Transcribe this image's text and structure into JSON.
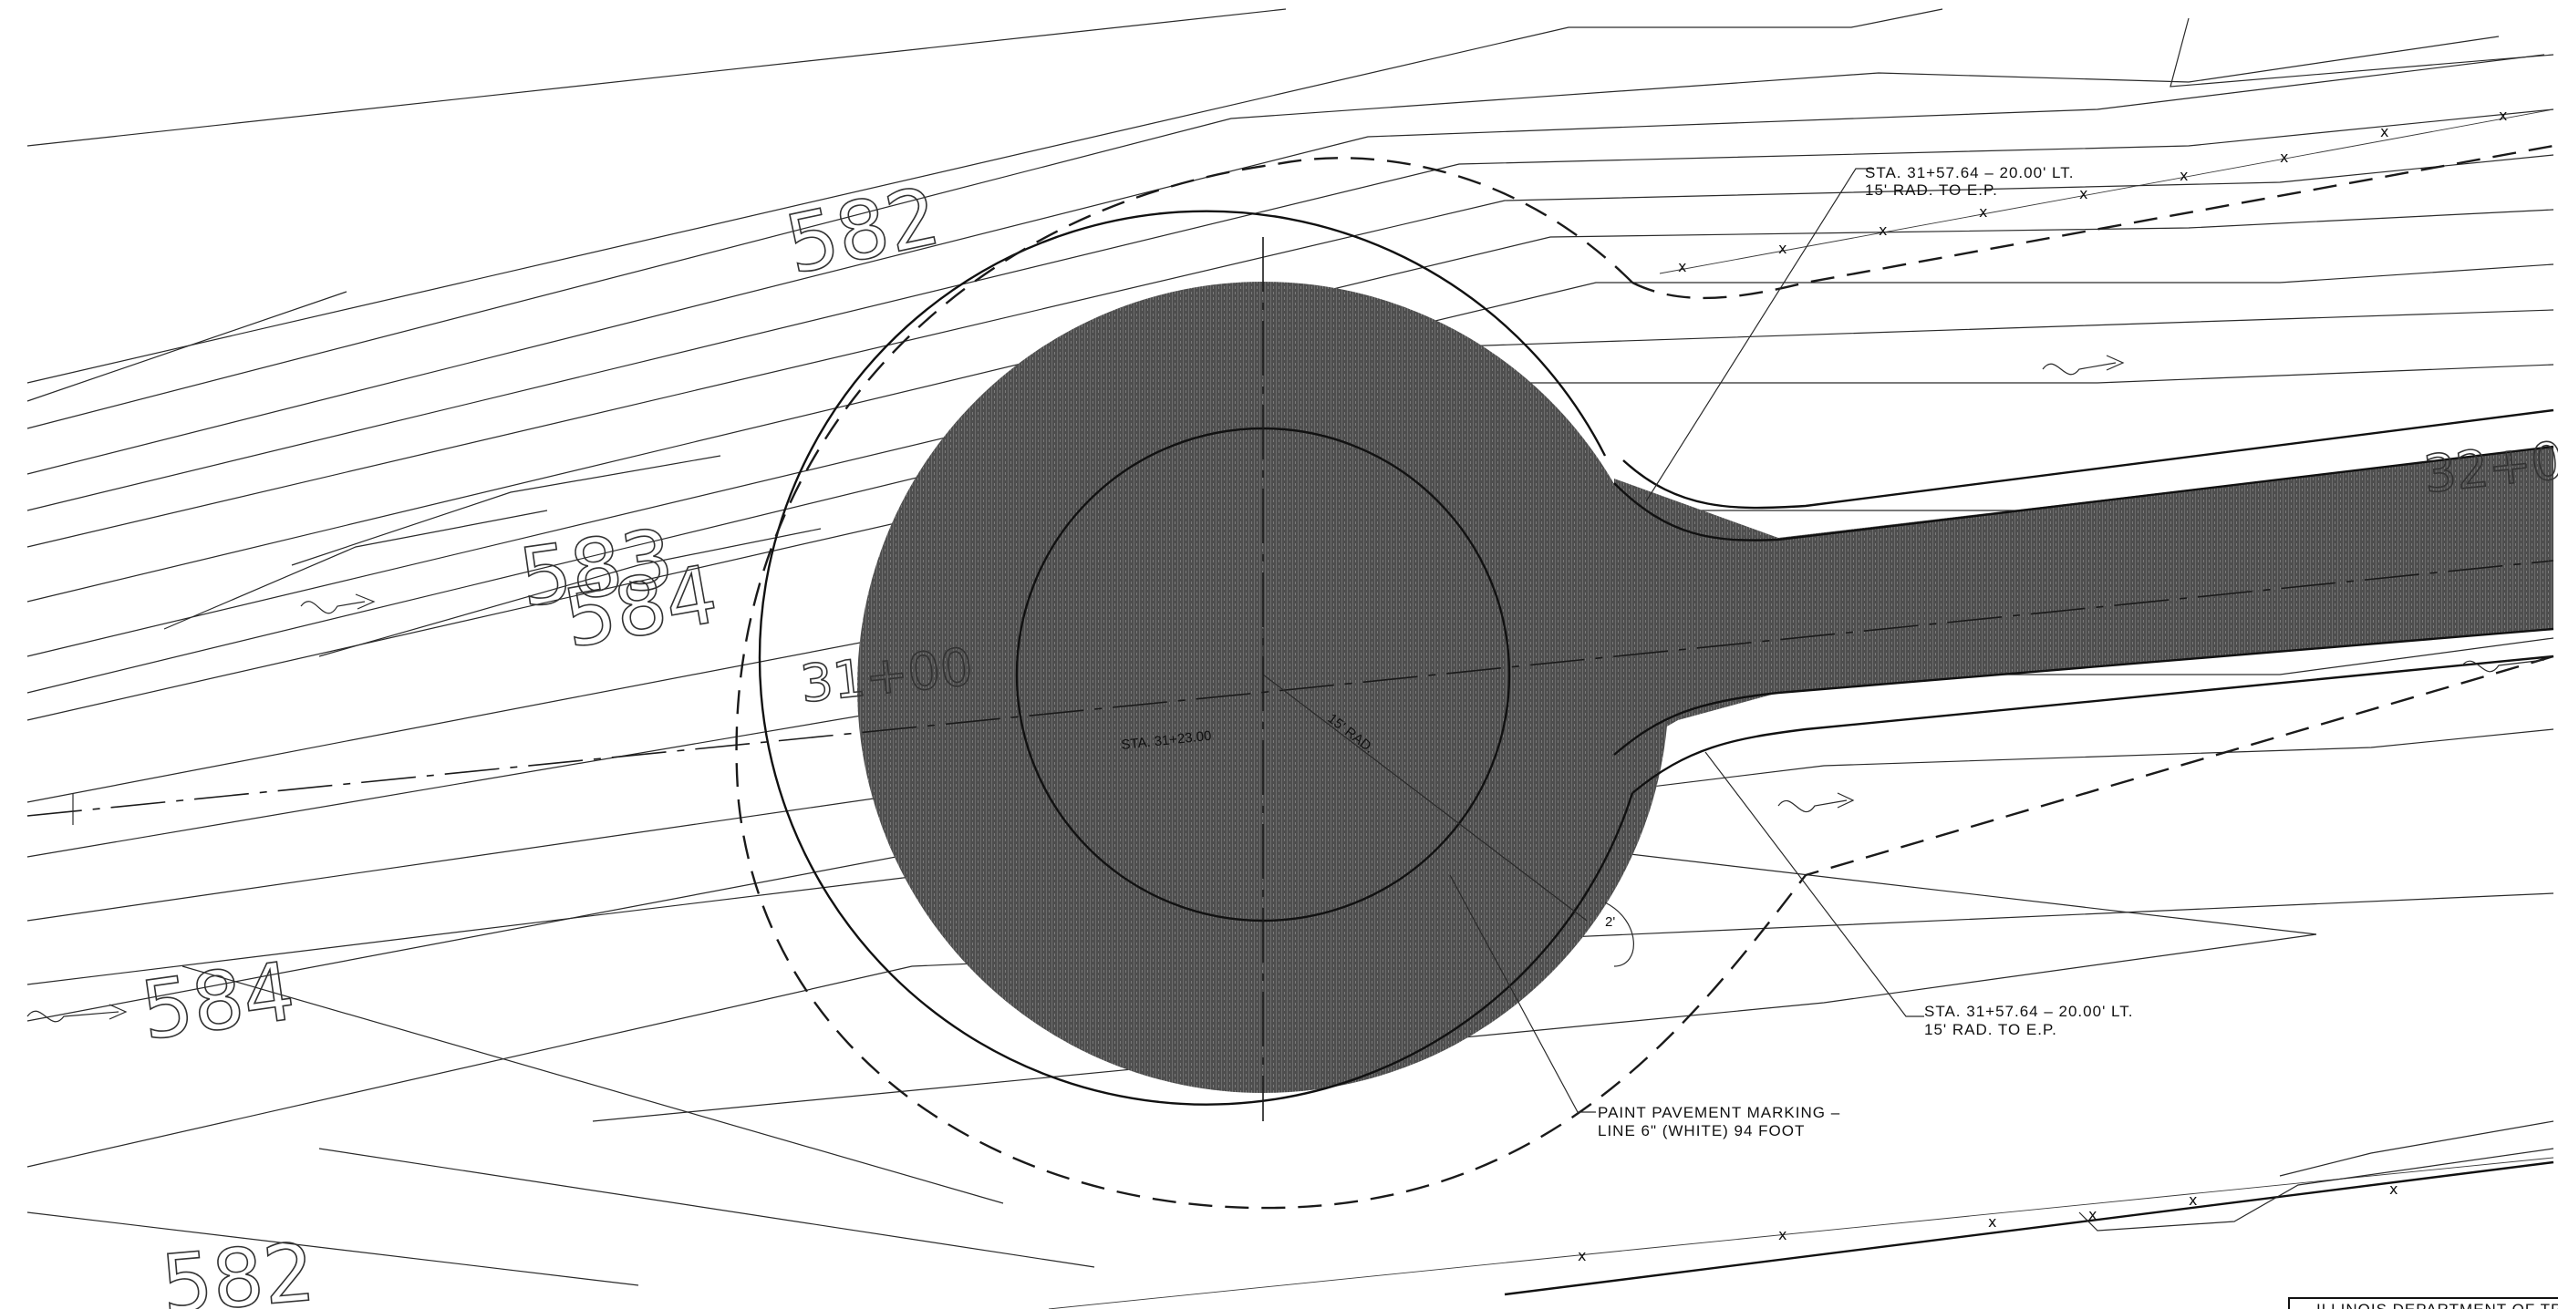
{
  "contours": {
    "label_582_upper": "582",
    "label_583": "583",
    "label_584_mid": "584",
    "label_584_lower": "584",
    "label_582_bottom": "582"
  },
  "stations": {
    "station_31_00": "31+00",
    "center_station": "STA. 31+23.00",
    "right_station": "32+0",
    "radius_small": "15' RAD."
  },
  "callouts": {
    "top_line1": "STA. 31+57.64 – 20.00' LT.",
    "top_line2": "15' RAD. TO E.P.",
    "bottom_line1": "STA. 31+57.64 – 20.00' LT.",
    "bottom_line2": "15' RAD. TO E.P.",
    "paint_line1": "PAINT PAVEMENT MARKING –",
    "paint_line2": "LINE 6\" (WHITE) 94 FOOT",
    "dim_2ft": "2'"
  },
  "title_block": {
    "agency": "ILLINOIS DEPARTMENT OF TRA"
  },
  "colors": {
    "pavement": "#5a5a5a",
    "linework": "#1a1a1a",
    "background": "#ffffff"
  }
}
